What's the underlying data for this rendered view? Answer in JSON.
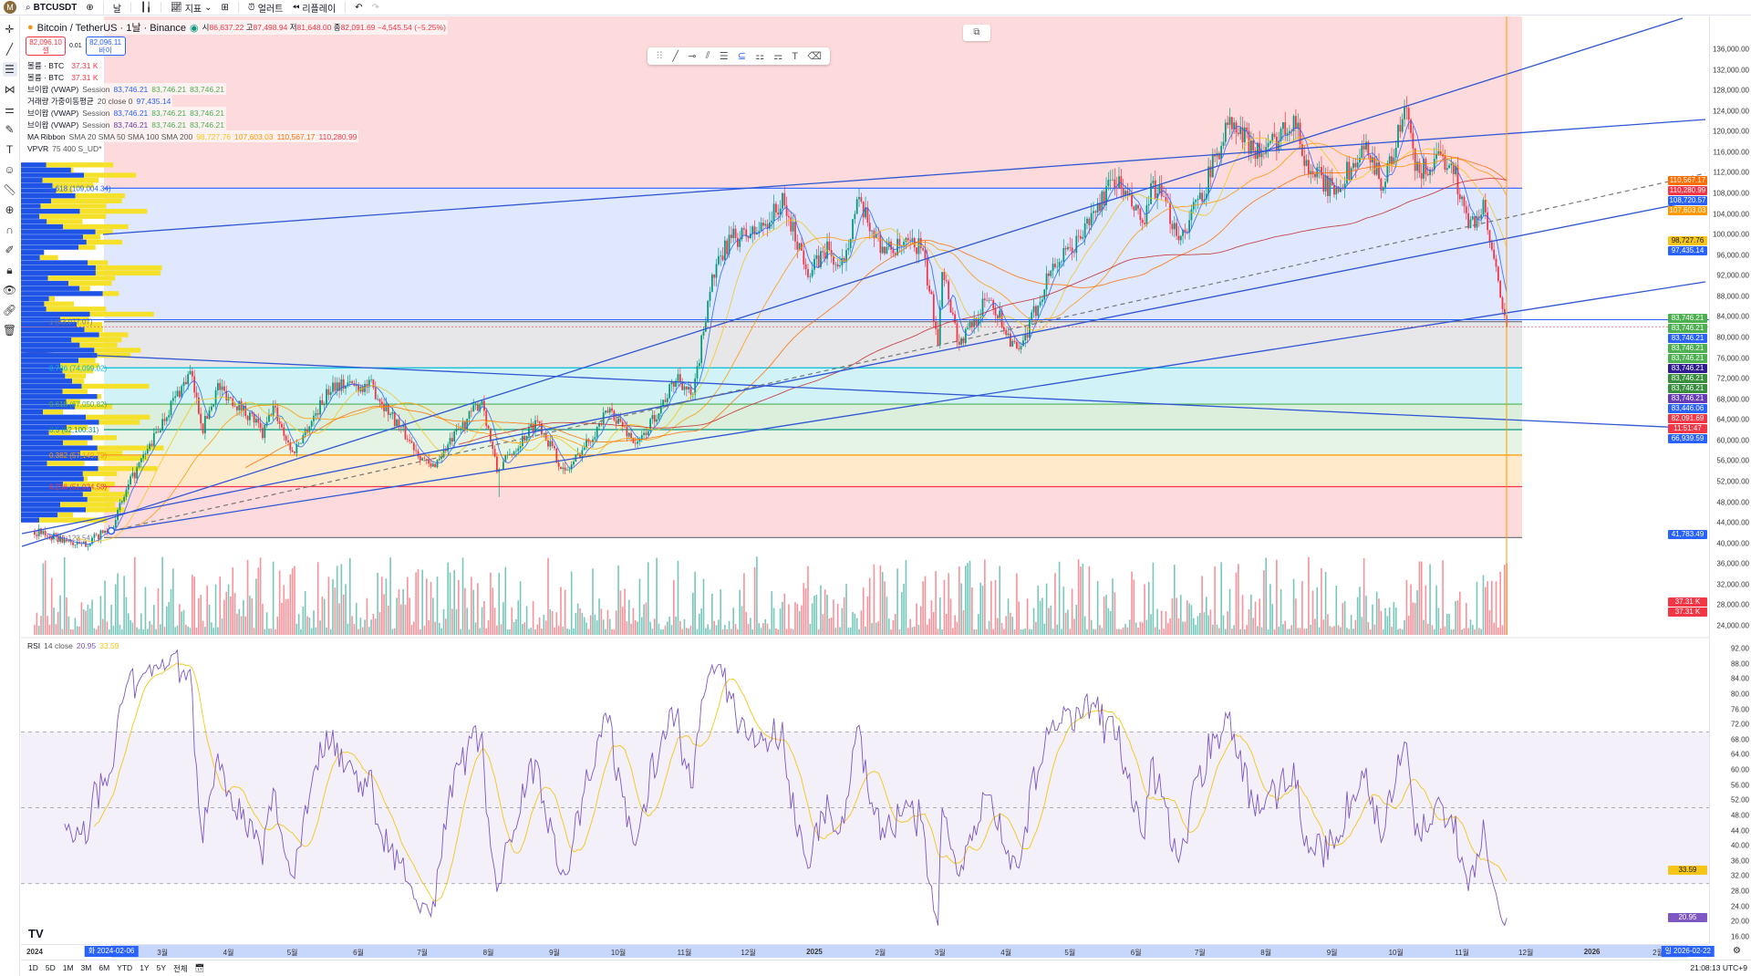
{
  "toolbar": {
    "avatar": "M",
    "symbol": "BTCUSDT",
    "interval": "날",
    "indicators": "지표",
    "alert": "얼러트",
    "replay": "리플레이"
  },
  "legend": {
    "title": "Bitcoin / TetherUS · 1날 · Binance",
    "ohlc": {
      "o_label": "시",
      "o": "86,637.22",
      "h_label": "고",
      "h": "87,498.94",
      "l_label": "저",
      "l": "81,648.00",
      "c_label": "종",
      "c": "82,091.69",
      "change": "−4,545.54 (−5.25%)"
    },
    "sell": {
      "price": "82,096.10",
      "label": "셀"
    },
    "spread": "0.01",
    "buy": {
      "price": "82,096.11",
      "label": "바이"
    },
    "indicators": [
      {
        "name": "볼륨 · BTC",
        "params": "",
        "values": [
          {
            "v": "37.31 K",
            "c": "#f23645"
          }
        ]
      },
      {
        "name": "볼륨 · BTC",
        "params": "",
        "values": [
          {
            "v": "37.31 K",
            "c": "#f23645"
          }
        ]
      },
      {
        "name": "브이왑 (VWAP)",
        "params": "Session",
        "values": [
          {
            "v": "83,746.21",
            "c": "#2962ff"
          },
          {
            "v": "83,746.21",
            "c": "#4caf50"
          },
          {
            "v": "83,746.21",
            "c": "#4caf50"
          }
        ]
      },
      {
        "name": "거래량 가중이동평균",
        "params": "20 close 0",
        "values": [
          {
            "v": "97,435.14",
            "c": "#2962ff"
          }
        ]
      },
      {
        "name": "브이왑 (VWAP)",
        "params": "Session",
        "values": [
          {
            "v": "83,746.21",
            "c": "#2962ff"
          },
          {
            "v": "83,746.21",
            "c": "#4caf50"
          },
          {
            "v": "83,746.21",
            "c": "#4caf50"
          }
        ]
      },
      {
        "name": "브이왑 (VWAP)",
        "params": "Session",
        "values": [
          {
            "v": "83,746.21",
            "c": "#673ab7"
          },
          {
            "v": "83,746.21",
            "c": "#4caf50"
          },
          {
            "v": "83,746.21",
            "c": "#4caf50"
          }
        ]
      },
      {
        "name": "MA Ribbon",
        "params": "SMA 20 SMA 50 SMA 100 SMA 200",
        "values": [
          {
            "v": "98,727.76",
            "c": "#f5c518"
          },
          {
            "v": "107,603.03",
            "c": "#ff9800"
          },
          {
            "v": "110,567.17",
            "c": "#ff6d00"
          },
          {
            "v": "110,280.99",
            "c": "#f23645"
          }
        ]
      },
      {
        "name": "VPVR",
        "params": "75 400 S_UD*",
        "values": []
      }
    ]
  },
  "rsi": {
    "name": "RSI",
    "params": "14 close",
    "value": "20.95",
    "ma": "33.59",
    "value_color": "#7e57c2",
    "ma_color": "#f5c518"
  },
  "price_axis": {
    "labels": [
      "136,000.00",
      "132,000.00",
      "128,000.00",
      "124,000.00",
      "120,000.00",
      "116,000.00",
      "112,000.00",
      "108,000.00",
      "104,000.00",
      "100,000.00",
      "96,000.00",
      "92,000.00",
      "88,000.00",
      "84,000.00",
      "80,000.00",
      "76,000.00",
      "72,000.00",
      "68,000.00",
      "64,000.00",
      "60,000.00",
      "56,000.00",
      "52,000.00",
      "48,000.00",
      "44,000.00",
      "40,000.00",
      "36,000.00",
      "32,000.00",
      "28,000.00",
      "24,000.00"
    ],
    "badges": [
      {
        "text": "110,567.17",
        "price": 110567.17,
        "color": "#ff6d00"
      },
      {
        "text": "110,280.99",
        "price": 110280.99,
        "color": "#f23645"
      },
      {
        "text": "108,720.57",
        "price": 108720.57,
        "color": "#2962ff"
      },
      {
        "text": "107,603.03",
        "price": 107603.03,
        "color": "#ff9800"
      },
      {
        "text": "98,727.76",
        "price": 98727.76,
        "color": "#f5c518"
      },
      {
        "text": "97,435.14",
        "price": 97435.14,
        "color": "#2962ff"
      },
      {
        "text": "83,746.21",
        "price": 83746.21,
        "color": "#4caf50"
      },
      {
        "text": "83,746.21",
        "price": 83746.21,
        "color": "#4caf50"
      },
      {
        "text": "83,746.21",
        "price": 83746.21,
        "color": "#2962ff"
      },
      {
        "text": "83,746.21",
        "price": 83746.21,
        "color": "#4caf50"
      },
      {
        "text": "83,746.21",
        "price": 83746.21,
        "color": "#4caf50"
      },
      {
        "text": "83,746.21",
        "price": 83746.21,
        "color": "#311b92"
      },
      {
        "text": "83,746.21",
        "price": 83746.21,
        "color": "#388e3c"
      },
      {
        "text": "83,746.21",
        "price": 83746.21,
        "color": "#388e3c"
      },
      {
        "text": "83,746.21",
        "price": 83746.21,
        "color": "#673ab7"
      },
      {
        "text": "83,446.06",
        "price": 83446.06,
        "color": "#2962ff"
      },
      {
        "text": "82,091.69",
        "price": 82091.69,
        "color": "#f23645"
      },
      {
        "text": "11:51:47",
        "price": 80800,
        "color": "#f23645"
      },
      {
        "text": "66,939.59",
        "price": 66939.59,
        "color": "#2962ff"
      },
      {
        "text": "41,783.49",
        "price": 41783.49,
        "color": "#2962ff"
      }
    ],
    "volume_badges": [
      "37.31 K",
      "37.31 K"
    ],
    "rsi_labels": [
      "92.00",
      "88.00",
      "84.00",
      "80.00",
      "76.00",
      "72.00",
      "68.00",
      "64.00",
      "60.00",
      "56.00",
      "52.00",
      "48.00",
      "44.00",
      "40.00",
      "36.00",
      "32.00",
      "28.00",
      "24.00",
      "20.00",
      "16.00"
    ]
  },
  "fib_levels": [
    {
      "level": 1.618,
      "label": "1.618 (109,004.34)",
      "price": 109004.34,
      "line": "#2962ff",
      "fill": "rgba(41,98,255,0.15)"
    },
    {
      "level": 1,
      "label": "1 (83,077.07)",
      "price": 83077.07,
      "line": "#787b86",
      "fill": "rgba(120,123,134,0.18)"
    },
    {
      "level": 0.786,
      "label": "0.786 (74,099.02)",
      "price": 74099.02,
      "line": "#00bcd4",
      "fill": "rgba(0,188,212,0.18)"
    },
    {
      "level": 0.618,
      "label": "0.618 (67,050.82)",
      "price": 67050.82,
      "line": "#4caf50",
      "fill": "rgba(76,175,80,0.2)"
    },
    {
      "level": 0.5,
      "label": "0.5 (62,100.31)",
      "price": 62100.31,
      "line": "#089981",
      "fill": "rgba(129,199,132,0.2)"
    },
    {
      "level": 0.382,
      "label": "0.382 (57,149.79)",
      "price": 57149.79,
      "line": "#ff9800",
      "fill": "rgba(255,152,0,0.2)"
    },
    {
      "level": 0.236,
      "label": "0.236 (51,024.58)",
      "price": 51024.58,
      "line": "#f23645",
      "fill": "rgba(242,54,69,0.18)"
    },
    {
      "level": 0,
      "label": "0 (41,123.54)",
      "price": 41123.54,
      "line": "#787b86",
      "fill": "rgba(0,0,0,0)"
    }
  ],
  "price_path": [
    [
      0,
      42300
    ],
    [
      22,
      39500
    ],
    [
      36,
      43000
    ],
    [
      45,
      52000
    ],
    [
      58,
      62000
    ],
    [
      64,
      67000
    ],
    [
      73,
      73000
    ],
    [
      79,
      62500
    ],
    [
      86,
      70500
    ],
    [
      103,
      64000
    ],
    [
      107,
      61000
    ],
    [
      112,
      66500
    ],
    [
      121,
      57500
    ],
    [
      140,
      71000
    ],
    [
      158,
      70500
    ],
    [
      175,
      60500
    ],
    [
      186,
      54500
    ],
    [
      210,
      68000
    ],
    [
      217,
      54000
    ],
    [
      236,
      64000
    ],
    [
      249,
      53500
    ],
    [
      270,
      66000
    ],
    [
      283,
      59000
    ],
    [
      302,
      72500
    ],
    [
      309,
      68000
    ],
    [
      317,
      90000
    ],
    [
      326,
      99000
    ],
    [
      339,
      100500
    ],
    [
      351,
      106000
    ],
    [
      364,
      92500
    ],
    [
      372,
      97500
    ],
    [
      378,
      92500
    ],
    [
      386,
      106000
    ],
    [
      399,
      97000
    ],
    [
      416,
      98000
    ],
    [
      424,
      80000
    ],
    [
      426,
      94000
    ],
    [
      434,
      78500
    ],
    [
      448,
      88000
    ],
    [
      462,
      76500
    ],
    [
      477,
      93500
    ],
    [
      487,
      97000
    ],
    [
      507,
      111000
    ],
    [
      521,
      101500
    ],
    [
      525,
      110000
    ],
    [
      538,
      99500
    ],
    [
      549,
      109000
    ],
    [
      560,
      121500
    ],
    [
      577,
      115500
    ],
    [
      591,
      123000
    ],
    [
      597,
      113500
    ],
    [
      609,
      108500
    ],
    [
      626,
      117000
    ],
    [
      633,
      109500
    ],
    [
      644,
      124500
    ],
    [
      648,
      112000
    ],
    [
      665,
      115000
    ],
    [
      673,
      101500
    ],
    [
      680,
      105000
    ],
    [
      686,
      92000
    ],
    [
      691,
      82091
    ]
  ],
  "time_axis": {
    "labels": [
      {
        "t": "2024",
        "d": 0
      },
      {
        "t": "3월",
        "d": 60
      },
      {
        "t": "4월",
        "d": 91
      },
      {
        "t": "5월",
        "d": 121
      },
      {
        "t": "6월",
        "d": 152
      },
      {
        "t": "7월",
        "d": 182
      },
      {
        "t": "8월",
        "d": 213
      },
      {
        "t": "9월",
        "d": 244
      },
      {
        "t": "10월",
        "d": 274
      },
      {
        "t": "11월",
        "d": 305
      },
      {
        "t": "12월",
        "d": 335
      },
      {
        "t": "2025",
        "d": 366
      },
      {
        "t": "2월",
        "d": 397
      },
      {
        "t": "3월",
        "d": 425
      },
      {
        "t": "4월",
        "d": 456
      },
      {
        "t": "5월",
        "d": 486
      },
      {
        "t": "6월",
        "d": 517
      },
      {
        "t": "7월",
        "d": 547
      },
      {
        "t": "8월",
        "d": 578
      },
      {
        "t": "9월",
        "d": 609
      },
      {
        "t": "10월",
        "d": 639
      },
      {
        "t": "11월",
        "d": 670
      },
      {
        "t": "12월",
        "d": 700
      },
      {
        "t": "2026",
        "d": 731
      },
      {
        "t": "2월",
        "d": 762
      }
    ],
    "start_badge": "화 2024-02-06",
    "end_badge": "일 2026-02-22"
  },
  "ranges": [
    "1D",
    "5D",
    "1M",
    "3M",
    "6M",
    "YTD",
    "1Y",
    "5Y",
    "전체"
  ],
  "clock": "21:08:13 UTC+9"
}
